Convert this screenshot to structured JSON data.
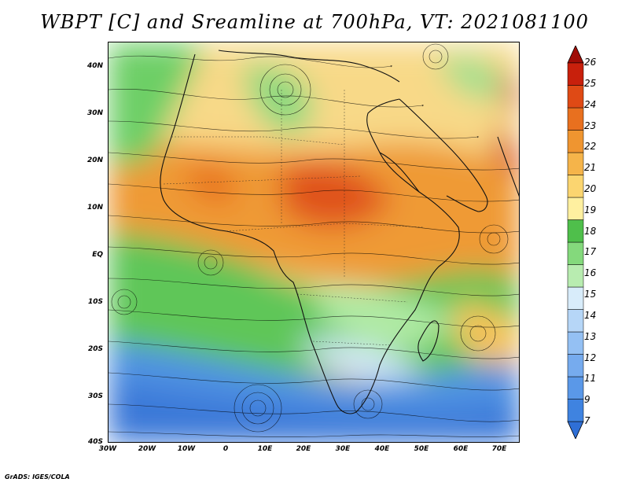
{
  "title": "WBPT [C] and Sreamline at 700hPa, VT: 2021081100",
  "credit": "GrADS: IGES/COLA",
  "map": {
    "lon_range": [
      -30,
      75
    ],
    "lat_range": [
      -40,
      45
    ],
    "lat_labels": [
      {
        "value": 40,
        "text": "40N"
      },
      {
        "value": 30,
        "text": "30N"
      },
      {
        "value": 20,
        "text": "20N"
      },
      {
        "value": 10,
        "text": "10N"
      },
      {
        "value": 0,
        "text": "EQ"
      },
      {
        "value": -10,
        "text": "10S"
      },
      {
        "value": -20,
        "text": "20S"
      },
      {
        "value": -30,
        "text": "30S"
      },
      {
        "value": -40,
        "text": "40S"
      }
    ],
    "lon_labels": [
      {
        "value": -30,
        "text": "30W"
      },
      {
        "value": -20,
        "text": "20W"
      },
      {
        "value": -10,
        "text": "10W"
      },
      {
        "value": 0,
        "text": "0"
      },
      {
        "value": 10,
        "text": "10E"
      },
      {
        "value": 20,
        "text": "20E"
      },
      {
        "value": 30,
        "text": "30E"
      },
      {
        "value": 40,
        "text": "40E"
      },
      {
        "value": 50,
        "text": "50E"
      },
      {
        "value": 60,
        "text": "60E"
      },
      {
        "value": 70,
        "text": "70E"
      }
    ]
  },
  "colorbar": {
    "levels": [
      "7",
      "9",
      "11",
      "12",
      "13",
      "14",
      "15",
      "16",
      "17",
      "18",
      "19",
      "20",
      "21",
      "22",
      "23",
      "24",
      "25",
      "26"
    ],
    "colors": [
      "#2f6fd6",
      "#3f83e0",
      "#5a98e8",
      "#76abee",
      "#94c0f3",
      "#b6d6f7",
      "#d8ecfa",
      "#b8ecb0",
      "#84d97c",
      "#4fbf4b",
      "#fff0a0",
      "#fbd570",
      "#f5b44a",
      "#ef9530",
      "#e8701f",
      "#df4a15",
      "#c8200c",
      "#a00c06"
    ]
  }
}
